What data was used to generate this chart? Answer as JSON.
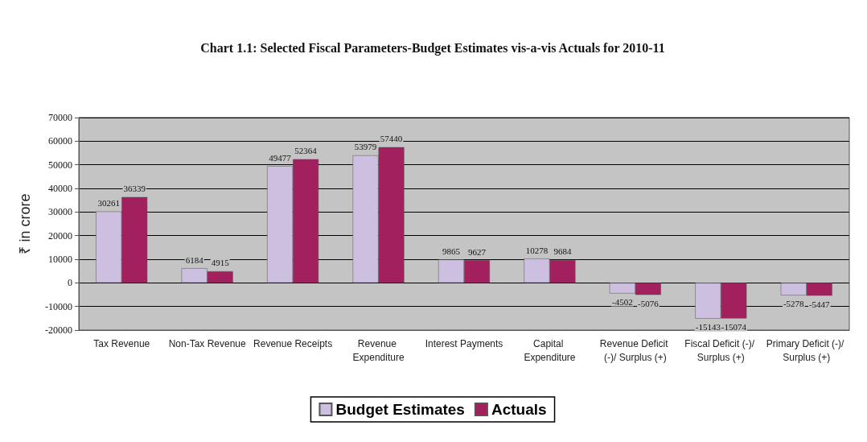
{
  "chart_data": {
    "type": "bar",
    "title": "Chart 1.1: Selected Fiscal Parameters-Budget Estimates vis-a-vis Actuals for 2010-11",
    "ylabel": "₹ in crore",
    "categories": [
      "Tax Revenue",
      "Non-Tax Revenue",
      "Revenue Receipts",
      "Revenue Expenditure",
      "Interest Payments",
      "Capital Expenditure",
      "Revenue Deficit (-)/ Surplus (+)",
      "Fiscal Deficit (-)/ Surplus (+)",
      "Primary Deficit (-)/ Surplus (+)"
    ],
    "series": [
      {
        "name": "Budget Estimates",
        "color": "#cdbfdf",
        "values": [
          30261,
          6184,
          49477,
          53979,
          9865,
          10278,
          -4502,
          -15143,
          -5278
        ]
      },
      {
        "name": "Actuals",
        "color": "#a3205f",
        "values": [
          36339,
          4915,
          52364,
          57440,
          9627,
          9684,
          -5076,
          -15074,
          -5447
        ]
      }
    ],
    "ylim": [
      -20000,
      70000
    ],
    "yticks": [
      -20000,
      -10000,
      0,
      10000,
      20000,
      30000,
      40000,
      50000,
      60000,
      70000
    ],
    "grid": "y",
    "legend": "bottom",
    "data_labels": true
  }
}
